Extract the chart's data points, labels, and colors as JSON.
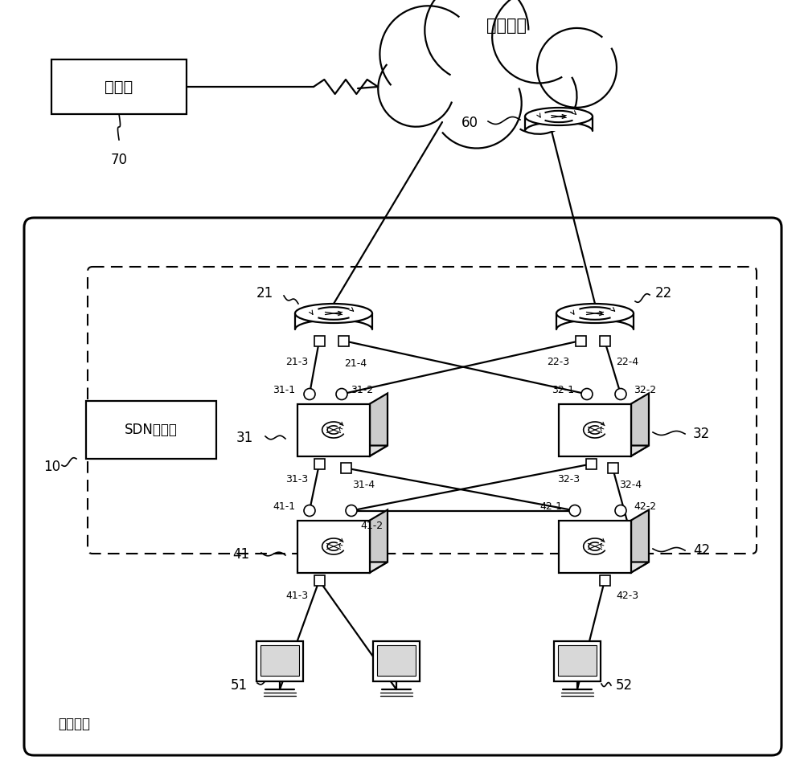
{
  "bg": "#ffffff",
  "fg": "#000000",
  "cloud_label": "核心网络",
  "source_label": "组播源",
  "sdn_label": "SDN控制器",
  "edge_label": "边缘网络",
  "lbl_70": "70",
  "lbl_60": "60",
  "lbl_10": "10",
  "lbl_21": "21",
  "lbl_22": "22",
  "lbl_31": "31",
  "lbl_32": "32",
  "lbl_41": "41",
  "lbl_42": "42",
  "lbl_51": "51",
  "lbl_52": "52",
  "ports_21": [
    "21-3",
    "21-4"
  ],
  "ports_22": [
    "22-3",
    "22-4"
  ],
  "ports_31": [
    "31-1",
    "31-2",
    "31-3",
    "31-4"
  ],
  "ports_32": [
    "32-1",
    "32-2",
    "32-3",
    "32-4"
  ],
  "ports_41": [
    "41-1",
    "41-2",
    "41-3"
  ],
  "ports_42": [
    "42-1",
    "42-2",
    "42-3"
  ]
}
